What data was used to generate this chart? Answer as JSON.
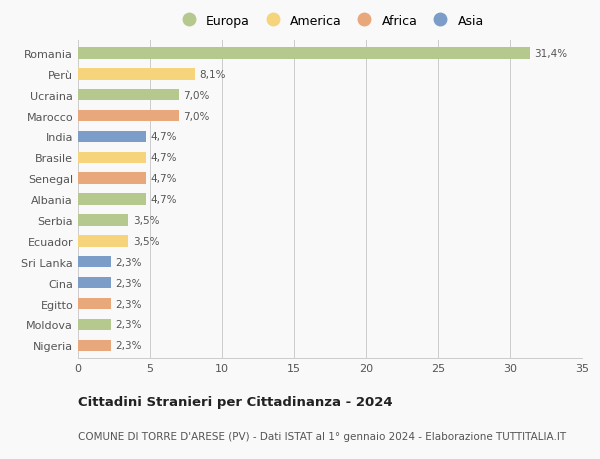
{
  "countries": [
    "Romania",
    "Perù",
    "Ucraina",
    "Marocco",
    "India",
    "Brasile",
    "Senegal",
    "Albania",
    "Serbia",
    "Ecuador",
    "Sri Lanka",
    "Cina",
    "Egitto",
    "Moldova",
    "Nigeria"
  ],
  "values": [
    31.4,
    8.1,
    7.0,
    7.0,
    4.7,
    4.7,
    4.7,
    4.7,
    3.5,
    3.5,
    2.3,
    2.3,
    2.3,
    2.3,
    2.3
  ],
  "labels": [
    "31,4%",
    "8,1%",
    "7,0%",
    "7,0%",
    "4,7%",
    "4,7%",
    "4,7%",
    "4,7%",
    "3,5%",
    "3,5%",
    "2,3%",
    "2,3%",
    "2,3%",
    "2,3%",
    "2,3%"
  ],
  "continents": [
    "Europa",
    "America",
    "Europa",
    "Africa",
    "Asia",
    "America",
    "Africa",
    "Europa",
    "Europa",
    "America",
    "Asia",
    "Asia",
    "Africa",
    "Europa",
    "Africa"
  ],
  "continent_colors": {
    "Europa": "#b5c98e",
    "America": "#f5d47b",
    "Africa": "#e8a87c",
    "Asia": "#7b9dc7"
  },
  "legend_order": [
    "Europa",
    "America",
    "Africa",
    "Asia"
  ],
  "xlim": [
    0,
    35
  ],
  "xticks": [
    0,
    5,
    10,
    15,
    20,
    25,
    30,
    35
  ],
  "title": "Cittadini Stranieri per Cittadinanza - 2024",
  "subtitle": "COMUNE DI TORRE D'ARESE (PV) - Dati ISTAT al 1° gennaio 2024 - Elaborazione TUTTITALIA.IT",
  "background_color": "#f9f9f9",
  "grid_color": "#cccccc",
  "bar_height": 0.55,
  "label_fontsize": 7.5,
  "title_fontsize": 9.5,
  "subtitle_fontsize": 7.5,
  "tick_fontsize": 8,
  "legend_fontsize": 9
}
